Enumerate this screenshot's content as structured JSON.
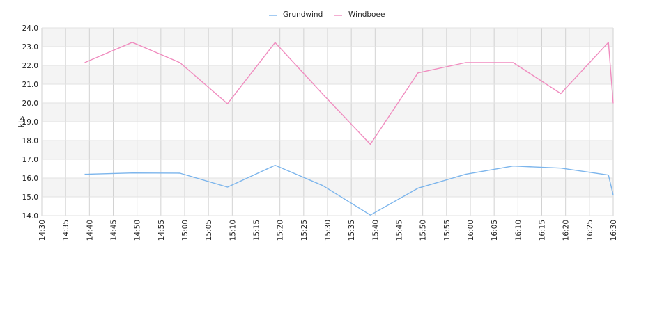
{
  "chart_data": {
    "type": "line",
    "title": "",
    "xlabel": "",
    "ylabel": "kts",
    "ylim": [
      14.0,
      24.0
    ],
    "yticks": [
      "14.0",
      "15.0",
      "16.0",
      "17.0",
      "18.0",
      "19.0",
      "20.0",
      "21.0",
      "22.0",
      "23.0",
      "24.0"
    ],
    "xlim": [
      "14:30",
      "16:30"
    ],
    "xticks": [
      "14:30",
      "14:35",
      "14:40",
      "14:45",
      "14:50",
      "14:55",
      "15:00",
      "15:05",
      "15:10",
      "15:15",
      "15:20",
      "15:25",
      "15:30",
      "15:35",
      "15:40",
      "15:45",
      "15:50",
      "15:55",
      "16:00",
      "16:05",
      "16:10",
      "16:15",
      "16:20",
      "16:25",
      "16:30"
    ],
    "grid": true,
    "legend_position": "top-center",
    "series": [
      {
        "name": "Grundwind",
        "color": "#7cb5ec",
        "points": [
          [
            "14:39",
            16.2
          ],
          [
            "14:49",
            16.27
          ],
          [
            "14:59",
            16.26
          ],
          [
            "15:09",
            15.52
          ],
          [
            "15:19",
            16.68
          ],
          [
            "15:29",
            15.6
          ],
          [
            "15:39",
            14.03
          ],
          [
            "15:49",
            15.46
          ],
          [
            "15:59",
            16.2
          ],
          [
            "16:09",
            16.64
          ],
          [
            "16:19",
            16.53
          ],
          [
            "16:29",
            16.16
          ],
          [
            "16:30",
            15.1
          ]
        ]
      },
      {
        "name": "Windboee",
        "color": "#f08cbf",
        "points": [
          [
            "14:39",
            22.15
          ],
          [
            "14:49",
            23.23
          ],
          [
            "14:59",
            22.15
          ],
          [
            "15:09",
            19.96
          ],
          [
            "15:19",
            23.22
          ],
          [
            "15:29",
            20.47
          ],
          [
            "15:39",
            17.8
          ],
          [
            "15:49",
            21.6
          ],
          [
            "15:59",
            22.15
          ],
          [
            "16:09",
            22.15
          ],
          [
            "16:19",
            20.5
          ],
          [
            "16:29",
            23.23
          ],
          [
            "16:30",
            19.98
          ]
        ]
      }
    ]
  }
}
